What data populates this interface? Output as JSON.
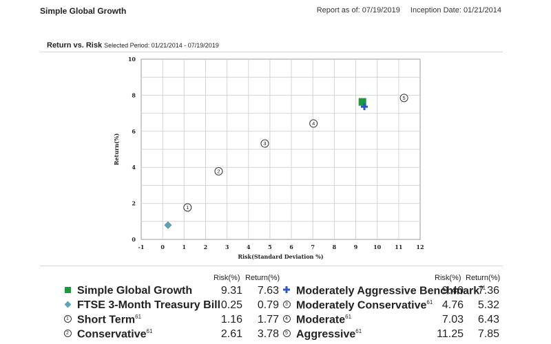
{
  "report": {
    "title": "Simple Global Growth",
    "report_as_of": "Report as of: 07/19/2019",
    "inception": "Inception Date: 01/21/2014"
  },
  "section": {
    "title": "Return vs. Risk",
    "period": "Selected Period:  01/21/2014 - 07/19/2019"
  },
  "chart_data": {
    "type": "scatter",
    "xlabel": "Risk(Standard Deviation %)",
    "ylabel": "Return(%)",
    "xlim": [
      -1,
      12
    ],
    "ylim": [
      0,
      10
    ],
    "grid": true,
    "x_ticks": [
      "-1",
      "0",
      "1",
      "2",
      "3",
      "4",
      "5",
      "6",
      "7",
      "8",
      "9",
      "10",
      "11",
      "12"
    ],
    "y_ticks": [
      "0",
      "2",
      "4",
      "6",
      "8",
      "10"
    ],
    "points": [
      {
        "name": "Simple Global Growth",
        "marker": "square",
        "color": "#1a9a3a",
        "x": 9.31,
        "y": 7.63
      },
      {
        "name": "FTSE 3-Month Treasury Bill",
        "marker": "diamond",
        "color": "#5fa3b8",
        "x": 0.25,
        "y": 0.79
      },
      {
        "name": "Short Term",
        "marker": "circle",
        "label": "1",
        "x": 1.16,
        "y": 1.77
      },
      {
        "name": "Conservative",
        "marker": "circle",
        "label": "2",
        "x": 2.61,
        "y": 3.78
      },
      {
        "name": "Moderately Aggressive Benchmark",
        "marker": "plus",
        "color": "#2a56c6",
        "x": 9.4,
        "y": 7.36
      },
      {
        "name": "Moderately Conservative",
        "marker": "circle",
        "label": "3",
        "x": 4.76,
        "y": 5.32
      },
      {
        "name": "Moderate",
        "marker": "circle",
        "label": "4",
        "x": 7.03,
        "y": 6.43
      },
      {
        "name": "Aggressive",
        "marker": "circle",
        "label": "5",
        "x": 11.25,
        "y": 7.85
      }
    ]
  },
  "legend": {
    "headers": {
      "risk": "Risk(%)",
      "return": "Return(%)"
    },
    "left": [
      {
        "name": "Simple Global Growth",
        "sup": "",
        "marker": "square",
        "risk": "9.31",
        "return": "7.63"
      },
      {
        "name": "FTSE 3-Month Treasury Bill",
        "sup": "",
        "marker": "diamond",
        "risk": "0.25",
        "return": "0.79"
      },
      {
        "name": "Short Term",
        "sup": "61",
        "marker": "circle",
        "label": "1",
        "risk": "1.16",
        "return": "1.77"
      },
      {
        "name": "Conservative",
        "sup": "61",
        "marker": "circle",
        "label": "2",
        "risk": "2.61",
        "return": "3.78"
      }
    ],
    "right": [
      {
        "name": "Moderately Aggressive Benchmark",
        "sup": "61",
        "marker": "plus",
        "risk": "9.40",
        "return": "7.36"
      },
      {
        "name": "Moderately Conservative",
        "sup": "61",
        "marker": "circle",
        "label": "3",
        "risk": "4.76",
        "return": "5.32"
      },
      {
        "name": "Moderate",
        "sup": "61",
        "marker": "circle",
        "label": "4",
        "risk": "7.03",
        "return": "6.43"
      },
      {
        "name": "Aggressive",
        "sup": "61",
        "marker": "circle",
        "label": "5",
        "risk": "11.25",
        "return": "7.85"
      }
    ]
  }
}
